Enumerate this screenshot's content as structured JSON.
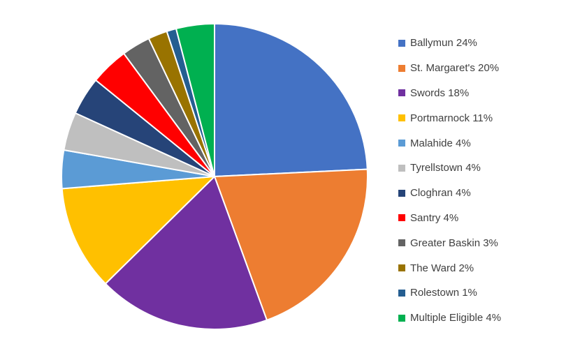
{
  "chart_data": {
    "type": "pie",
    "slices": [
      {
        "label": "Ballymun",
        "value": 24,
        "legend": "Ballymun 24%",
        "color": "#4472C4"
      },
      {
        "label": "St. Margaret's",
        "value": 20,
        "legend": "St. Margaret's 20%",
        "color": "#ED7D31"
      },
      {
        "label": "Swords",
        "value": 18,
        "legend": "Swords 18%",
        "color": "#7030A0"
      },
      {
        "label": "Portmarnock",
        "value": 11,
        "legend": "Portmarnock 11%",
        "color": "#FFC000"
      },
      {
        "label": "Malahide",
        "value": 4,
        "legend": "Malahide 4%",
        "color": "#5B9BD5"
      },
      {
        "label": "Tyrellstown",
        "value": 4,
        "legend": "Tyrellstown 4%",
        "color": "#BFBFBF"
      },
      {
        "label": "Cloghran",
        "value": 4,
        "legend": "Cloghran 4%",
        "color": "#264478"
      },
      {
        "label": "Santry",
        "value": 4,
        "legend": "Santry 4%",
        "color": "#FF0000"
      },
      {
        "label": "Greater Baskin",
        "value": 3,
        "legend": "Greater Baskin 3%",
        "color": "#636363"
      },
      {
        "label": "The Ward",
        "value": 2,
        "legend": "The Ward 2%",
        "color": "#997300"
      },
      {
        "label": "Rolestown",
        "value": 1,
        "legend": "Rolestown 1%",
        "color": "#255E91"
      },
      {
        "label": "Multiple Eligible",
        "value": 4,
        "legend": "Multiple Eligible 4%",
        "color": "#00B050"
      }
    ],
    "legend_position": "right",
    "start": "12 o'clock",
    "direction": "clockwise"
  }
}
